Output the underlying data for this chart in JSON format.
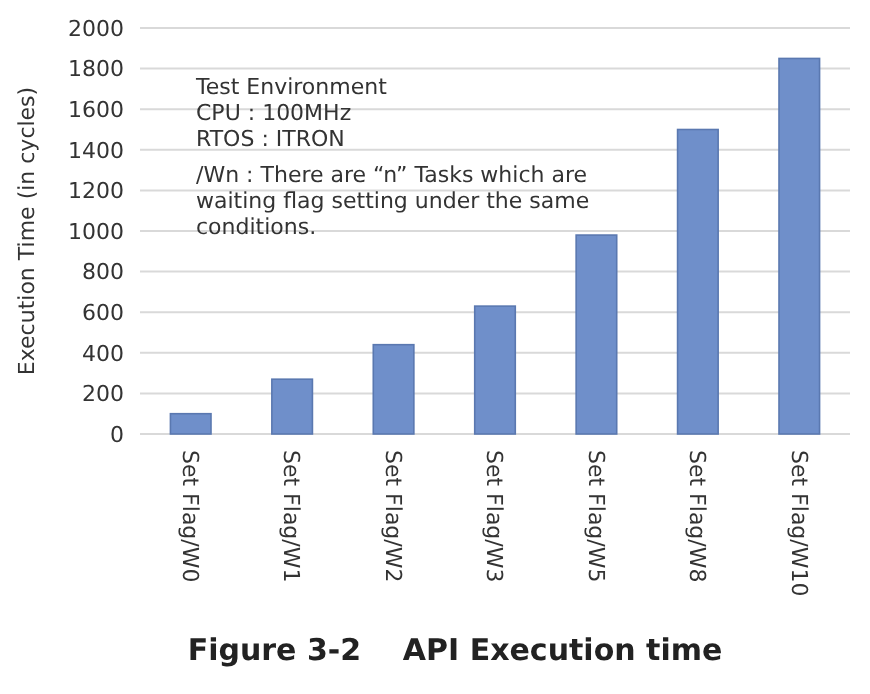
{
  "chart_data": {
    "type": "bar",
    "title": "Figure 3-2    API Execution time",
    "ylabel": "Execution Time (in cycles)",
    "categories": [
      "Set Flag/W0",
      "Set Flag/W1",
      "Set Flag/W2",
      "Set Flag/W3",
      "Set Flag/W5",
      "Set Flag/W8",
      "Set Flag/W10"
    ],
    "values": [
      100,
      270,
      440,
      630,
      980,
      1500,
      1850
    ],
    "color": "#6f8fca",
    "ylim": [
      0,
      2000
    ],
    "yticks": [
      0,
      200,
      400,
      600,
      800,
      1000,
      1200,
      1400,
      1600,
      1800,
      2000
    ],
    "grid": "y",
    "annotations": [
      "Test Environment",
      "CPU : 100MHz",
      "RTOS : ITRON",
      "/Wn : There are “n” Tasks which are waiting flag setting under the same conditions."
    ]
  }
}
